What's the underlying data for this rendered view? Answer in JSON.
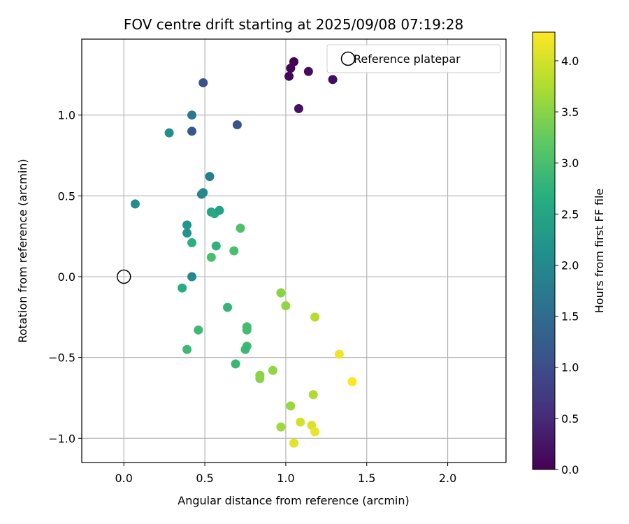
{
  "chart_data": {
    "type": "scatter",
    "title": "FOV centre drift starting at 2025/09/08 07:19:28",
    "xlabel": "Angular distance from reference (arcmin)",
    "ylabel": "Rotation from reference (arcmin)",
    "xlim": [
      -0.26,
      2.36
    ],
    "ylim": [
      -1.15,
      1.47
    ],
    "xticks": [
      0.0,
      0.5,
      1.0,
      1.5,
      2.0
    ],
    "xtick_labels": [
      "0.0",
      "0.5",
      "1.0",
      "1.5",
      "2.0"
    ],
    "yticks": [
      -1.0,
      -0.5,
      0.0,
      0.5,
      1.0
    ],
    "ytick_labels": [
      "−1.0",
      "−0.5",
      "0.0",
      "0.5",
      "1.0"
    ],
    "grid": true,
    "legend": {
      "position": "top-right",
      "entries": [
        "Reference platepar"
      ]
    },
    "reference_point": {
      "x": 0.0,
      "y": 0.0,
      "marker": "open-circle"
    },
    "colorbar": {
      "label": "Hours from first FF file",
      "colormap": "viridis",
      "range": [
        0.0,
        4.28
      ],
      "ticks": [
        0.0,
        0.5,
        1.0,
        1.5,
        2.0,
        2.5,
        3.0,
        3.5,
        4.0
      ],
      "tick_labels": [
        "0.0",
        "0.5",
        "1.0",
        "1.5",
        "2.0",
        "2.5",
        "3.0",
        "3.5",
        "4.0"
      ]
    },
    "points": [
      {
        "x": 1.05,
        "y": 1.33,
        "t": 0.0
      },
      {
        "x": 1.03,
        "y": 1.29,
        "t": 0.05
      },
      {
        "x": 1.02,
        "y": 1.24,
        "t": 0.08
      },
      {
        "x": 1.14,
        "y": 1.27,
        "t": 0.12
      },
      {
        "x": 1.29,
        "y": 1.22,
        "t": 0.15
      },
      {
        "x": 1.08,
        "y": 1.04,
        "t": 0.2
      },
      {
        "x": 0.49,
        "y": 1.2,
        "t": 1.05
      },
      {
        "x": 0.7,
        "y": 0.94,
        "t": 1.1
      },
      {
        "x": 0.42,
        "y": 0.9,
        "t": 1.15
      },
      {
        "x": 0.42,
        "y": 1.0,
        "t": 1.7
      },
      {
        "x": 0.28,
        "y": 0.89,
        "t": 2.1
      },
      {
        "x": 0.53,
        "y": 0.62,
        "t": 1.8
      },
      {
        "x": 0.48,
        "y": 0.51,
        "t": 1.9
      },
      {
        "x": 0.49,
        "y": 0.52,
        "t": 2.0
      },
      {
        "x": 0.07,
        "y": 0.45,
        "t": 2.05
      },
      {
        "x": 0.42,
        "y": 0.0,
        "t": 2.0
      },
      {
        "x": 0.39,
        "y": 0.32,
        "t": 2.2
      },
      {
        "x": 0.39,
        "y": 0.27,
        "t": 2.2
      },
      {
        "x": 0.54,
        "y": 0.4,
        "t": 2.5
      },
      {
        "x": 0.56,
        "y": 0.39,
        "t": 2.6
      },
      {
        "x": 0.59,
        "y": 0.41,
        "t": 2.45
      },
      {
        "x": 0.42,
        "y": 0.21,
        "t": 2.7
      },
      {
        "x": 0.57,
        "y": 0.19,
        "t": 2.75
      },
      {
        "x": 0.54,
        "y": 0.12,
        "t": 3.0
      },
      {
        "x": 0.68,
        "y": 0.16,
        "t": 3.0
      },
      {
        "x": 0.72,
        "y": 0.3,
        "t": 3.05
      },
      {
        "x": 0.36,
        "y": -0.07,
        "t": 2.65
      },
      {
        "x": 0.64,
        "y": -0.19,
        "t": 2.8
      },
      {
        "x": 0.46,
        "y": -0.33,
        "t": 2.9
      },
      {
        "x": 0.39,
        "y": -0.45,
        "t": 2.9
      },
      {
        "x": 0.76,
        "y": -0.31,
        "t": 2.95
      },
      {
        "x": 0.76,
        "y": -0.33,
        "t": 2.95
      },
      {
        "x": 0.76,
        "y": -0.43,
        "t": 2.9
      },
      {
        "x": 0.75,
        "y": -0.45,
        "t": 2.85
      },
      {
        "x": 0.69,
        "y": -0.54,
        "t": 2.85
      },
      {
        "x": 0.84,
        "y": -0.61,
        "t": 3.5
      },
      {
        "x": 0.84,
        "y": -0.63,
        "t": 3.5
      },
      {
        "x": 0.92,
        "y": -0.58,
        "t": 3.55
      },
      {
        "x": 0.97,
        "y": -0.1,
        "t": 3.5
      },
      {
        "x": 1.0,
        "y": -0.18,
        "t": 3.55
      },
      {
        "x": 1.18,
        "y": -0.25,
        "t": 3.8
      },
      {
        "x": 1.03,
        "y": -0.8,
        "t": 3.6
      },
      {
        "x": 0.97,
        "y": -0.93,
        "t": 3.65
      },
      {
        "x": 1.17,
        "y": -0.73,
        "t": 3.75
      },
      {
        "x": 1.09,
        "y": -0.9,
        "t": 4.0
      },
      {
        "x": 1.16,
        "y": -0.92,
        "t": 4.05
      },
      {
        "x": 1.18,
        "y": -0.96,
        "t": 4.15
      },
      {
        "x": 1.05,
        "y": -1.03,
        "t": 4.1
      },
      {
        "x": 1.33,
        "y": -0.48,
        "t": 4.2
      },
      {
        "x": 1.41,
        "y": -0.65,
        "t": 4.28
      }
    ]
  }
}
